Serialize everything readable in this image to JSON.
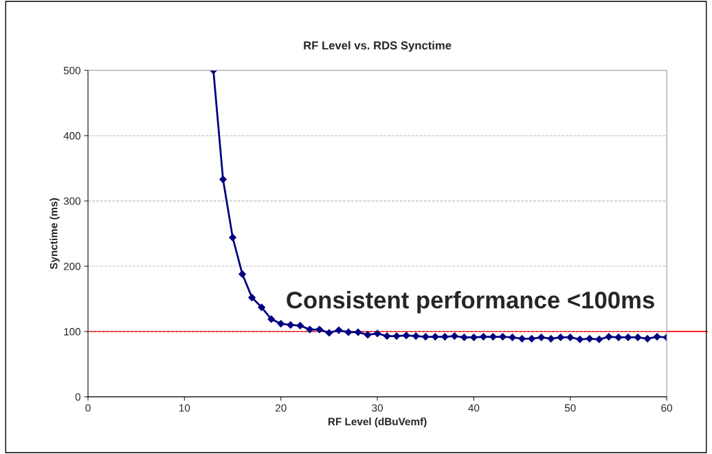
{
  "chart_data": {
    "type": "line",
    "title": "RF Level vs. RDS Synctime",
    "xlabel": "RF Level (dBuVemf)",
    "ylabel": "Synctime (ms)",
    "x": [
      13,
      14,
      15,
      16,
      17,
      18,
      19,
      20,
      21,
      22,
      23,
      24,
      25,
      26,
      27,
      28,
      29,
      30,
      31,
      32,
      33,
      34,
      35,
      36,
      37,
      38,
      39,
      40,
      41,
      42,
      43,
      44,
      45,
      46,
      47,
      48,
      49,
      50,
      51,
      52,
      53,
      54,
      55,
      56,
      57,
      58,
      59,
      60
    ],
    "series": [
      {
        "color": "#000080",
        "values": [
          500,
          333,
          244,
          188,
          152,
          137,
          119,
          112,
          110,
          109,
          103,
          103,
          98,
          102,
          99,
          99,
          95,
          97,
          93,
          93,
          94,
          93,
          92,
          92,
          92,
          93,
          91,
          91,
          92,
          92,
          92,
          91,
          89,
          89,
          91,
          89,
          91,
          91,
          88,
          89,
          88,
          92,
          91,
          91,
          91,
          89,
          92,
          91
        ]
      }
    ],
    "xlim": [
      0,
      60
    ],
    "xticks": [
      0,
      10,
      20,
      30,
      40,
      50,
      60
    ],
    "ylim": [
      0,
      500
    ],
    "yticks": [
      0,
      100,
      200,
      300,
      400,
      500
    ],
    "grid": "y",
    "marker": "diamond",
    "line_style": "solid",
    "ref_lines": [
      {
        "axis": "y",
        "value": 100,
        "color": "#ff0000",
        "line_style": "solid"
      }
    ],
    "annotations": [
      "Consistent performance <100ms"
    ]
  }
}
